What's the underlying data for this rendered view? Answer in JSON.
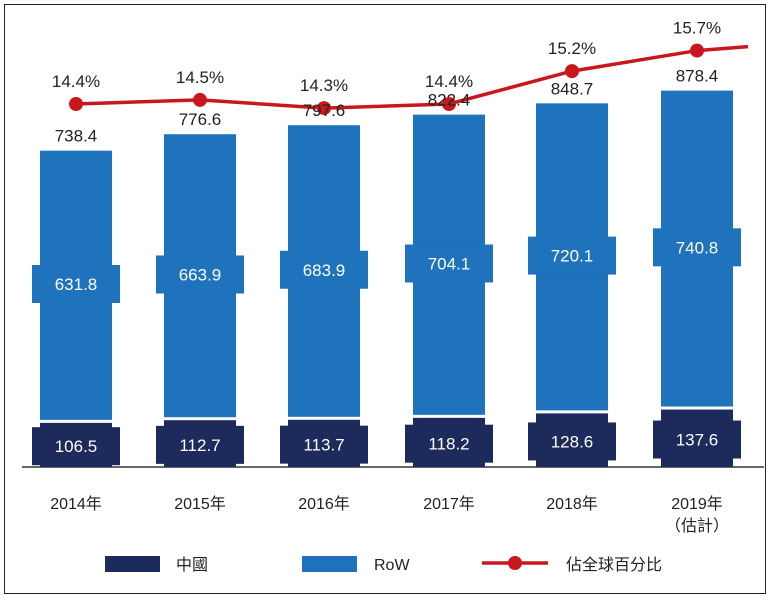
{
  "colors": {
    "china": "#1c2a5c",
    "row": "#1f73bd",
    "share_line": "#c8181e",
    "text": "#222222"
  },
  "chart_data": {
    "type": "bar",
    "stacked": true,
    "categories": [
      "2014年",
      "2015年",
      "2016年",
      "2017年",
      "2018年",
      "2019年"
    ],
    "category_sublabels": [
      "",
      "",
      "",
      "",
      "",
      "（估計）"
    ],
    "series": [
      {
        "name": "中國",
        "values": [
          106.5,
          112.7,
          113.7,
          118.2,
          128.6,
          137.6
        ]
      },
      {
        "name": "RoW",
        "values": [
          631.8,
          663.9,
          683.9,
          704.1,
          720.1,
          740.8
        ]
      }
    ],
    "totals": [
      738.4,
      776.6,
      797.6,
      822.4,
      848.7,
      878.4
    ],
    "line_series": {
      "name": "佔全球百分比",
      "values": [
        14.4,
        14.5,
        14.3,
        14.4,
        15.2,
        15.7
      ],
      "labels": [
        "14.4%",
        "14.5%",
        "14.3%",
        "14.4%",
        "15.2%",
        "15.7%"
      ]
    },
    "ylim": [
      0,
      900
    ],
    "grid": false,
    "legend_position": "bottom"
  }
}
